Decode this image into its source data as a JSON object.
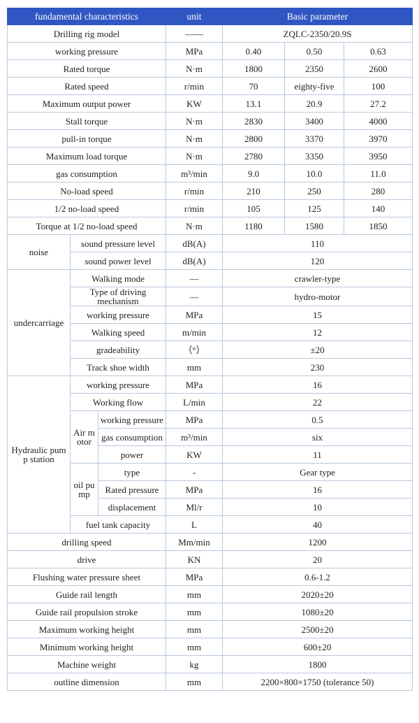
{
  "header": {
    "characteristics": "fundamental characteristics",
    "unit": "unit",
    "parameter": "Basic parameter"
  },
  "model": {
    "label": "Drilling rig model",
    "unit": "——",
    "value": "ZQLC-2350/20.9S"
  },
  "rows": [
    {
      "label": "working pressure",
      "unit": "MPa",
      "values": [
        "0.40",
        "0.50",
        "0.63"
      ]
    },
    {
      "label": "Rated torque",
      "unit": "N·m",
      "values": [
        "1800",
        "2350",
        "2600"
      ]
    },
    {
      "label": "Rated speed",
      "unit": "r/min",
      "values": [
        "70",
        "eighty-five",
        "100"
      ]
    },
    {
      "label": "Maximum output power",
      "unit": "KW",
      "values": [
        "13.1",
        "20.9",
        "27.2"
      ]
    },
    {
      "label": "Stall torque",
      "unit": "N·m",
      "values": [
        "2830",
        "3400",
        "4000"
      ]
    },
    {
      "label": "pull-in torque",
      "unit": "N·m",
      "values": [
        "2800",
        "3370",
        "3970"
      ]
    },
    {
      "label": "Maximum load torque",
      "unit": "N·m",
      "values": [
        "2780",
        "3350",
        "3950"
      ]
    },
    {
      "label": "gas consumption",
      "unit": "m³/min",
      "values": [
        "9.0",
        "10.0",
        "11.0"
      ]
    },
    {
      "label": "No-load speed",
      "unit": "r/min",
      "values": [
        "210",
        "250",
        "280"
      ]
    },
    {
      "label": "1/2 no-load speed",
      "unit": "r/min",
      "values": [
        "105",
        "125",
        "140"
      ]
    },
    {
      "label": "Torque at 1/2 no-load speed",
      "unit": "N·m",
      "values": [
        "1180",
        "1580",
        "1850"
      ]
    }
  ],
  "noise": {
    "label": "noise",
    "rows": [
      {
        "label": "sound pressure level",
        "unit": "dB(A)",
        "value": "110"
      },
      {
        "label": "sound power level",
        "unit": "dB(A)",
        "value": "120"
      }
    ]
  },
  "undercarriage": {
    "label": "undercarriage",
    "rows": [
      {
        "label": "Walking mode",
        "unit": "—",
        "value": "crawler-type"
      },
      {
        "label": "Type of driving mechanism",
        "unit": "—",
        "value": "hydro-motor"
      },
      {
        "label": "working pressure",
        "unit": "MPa",
        "value": "15"
      },
      {
        "label": "Walking speed",
        "unit": "m/min",
        "value": "12"
      },
      {
        "label": "gradeability",
        "unit": "（°）",
        "value": "±20"
      },
      {
        "label": "Track shoe width",
        "unit": "mm",
        "value": "230"
      }
    ]
  },
  "hydraulic": {
    "label": "Hydraulic pump station",
    "rows": [
      {
        "label": "working pressure",
        "unit": "MPa",
        "value": "16"
      },
      {
        "label": "Working flow",
        "unit": "L/min",
        "value": "22"
      }
    ],
    "air_motor": {
      "label": "Air motor",
      "rows": [
        {
          "label": "working pressure",
          "unit": "MPa",
          "value": "0.5"
        },
        {
          "label": "gas consumption",
          "unit": "m³/min",
          "value": "six"
        },
        {
          "label": "power",
          "unit": "KW",
          "value": "11"
        }
      ]
    },
    "oil_pump": {
      "label": "oil pump",
      "rows": [
        {
          "label": "type",
          "unit": "-",
          "value": "Gear type"
        },
        {
          "label": "Rated pressure",
          "unit": "MPa",
          "value": "16"
        },
        {
          "label": "displacement",
          "unit": "Ml/r",
          "value": "10"
        }
      ]
    },
    "fuel": {
      "label": "fuel tank capacity",
      "unit": "L",
      "value": "40"
    }
  },
  "bottom": [
    {
      "label": "drilling speed",
      "unit": "Mm/min",
      "value": "1200"
    },
    {
      "label": "drive",
      "unit": "KN",
      "value": "20"
    },
    {
      "label": "Flushing water pressure sheet",
      "unit": "MPa",
      "value": "0.6-1.2"
    },
    {
      "label": "Guide rail length",
      "unit": "mm",
      "value": "2020±20"
    },
    {
      "label": "Guide rail propulsion stroke",
      "unit": "mm",
      "value": "1080±20"
    },
    {
      "label": "Maximum working height",
      "unit": "mm",
      "value": "2500±20"
    },
    {
      "label": "Minimum working height",
      "unit": "mm",
      "value": "600±20"
    },
    {
      "label": "Machine weight",
      "unit": "kg",
      "value": "1800"
    },
    {
      "label": "outline dimension",
      "unit": "mm",
      "value": "2200×800×1750 (tolerance 50)"
    }
  ]
}
